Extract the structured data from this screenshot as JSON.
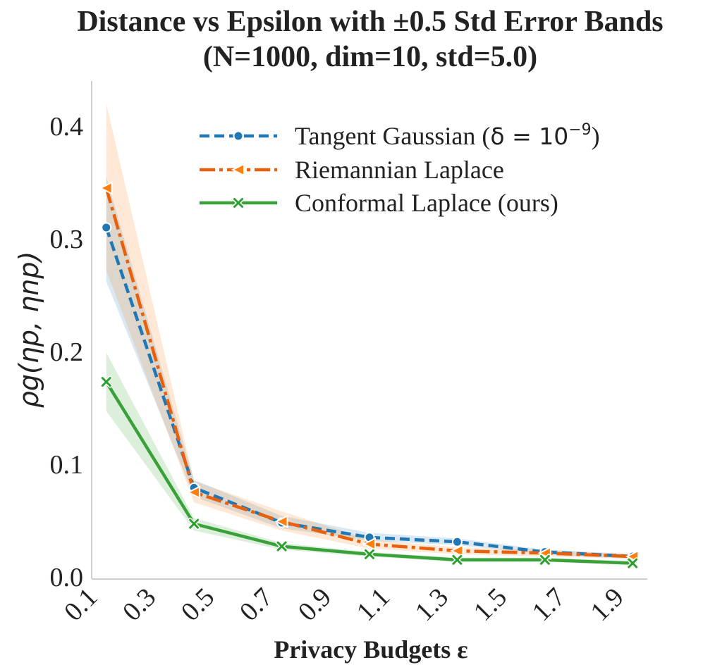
{
  "chart_data": {
    "type": "line",
    "title_line1": "Distance vs Epsilon with ±0.5 Std Error Bands",
    "title_line2": "(N=1000, dim=10, std=5.0)",
    "xlabel": "Privacy Budgets ε",
    "ylabel": "ρg(ηp, ηnp)",
    "x_tick_labels": [
      "0.1",
      "0.3",
      "0.5",
      "0.7",
      "0.9",
      "1.1",
      "1.3",
      "1.5",
      "1.7",
      "1.9"
    ],
    "y_tick_labels": [
      "0.0",
      "0.1",
      "0.2",
      "0.3",
      "0.4"
    ],
    "y_ticks": [
      0.0,
      0.1,
      0.2,
      0.3,
      0.4
    ],
    "xlim": [
      0.1,
      2.0
    ],
    "ylim": [
      -0.002,
      0.44
    ],
    "grid": false,
    "legend_position": "top-right",
    "x": [
      0.15,
      0.45,
      0.75,
      1.05,
      1.35,
      1.65,
      1.95
    ],
    "series": [
      {
        "name": "Tangent Gaussian",
        "legend_label": "Tangent Gaussian (",
        "legend_math": "δ = 10",
        "legend_sup": "−9",
        "legend_close": ")",
        "color": "#1f77b4",
        "dash": "14,7",
        "marker": "circle",
        "values": [
          0.31,
          0.079,
          0.048,
          0.035,
          0.031,
          0.022,
          0.018
        ],
        "lower": [
          0.262,
          0.071,
          0.043,
          0.032,
          0.028,
          0.02,
          0.016
        ],
        "upper": [
          0.355,
          0.086,
          0.054,
          0.039,
          0.034,
          0.024,
          0.02
        ]
      },
      {
        "name": "Riemannian Laplace",
        "legend_label": "Riemannian Laplace",
        "color": "#ff7f0e",
        "line_color": "#e8600c",
        "dash": "22,6,5,6",
        "marker": "triangle-left",
        "values": [
          0.345,
          0.075,
          0.049,
          0.029,
          0.023,
          0.021,
          0.018
        ],
        "lower": [
          0.272,
          0.066,
          0.041,
          0.025,
          0.02,
          0.018,
          0.016
        ],
        "upper": [
          0.42,
          0.085,
          0.058,
          0.033,
          0.026,
          0.024,
          0.02
        ]
      },
      {
        "name": "Conformal Laplace (ours)",
        "legend_label": "Conformal Laplace (ours)",
        "color": "#2ca02c",
        "line_color": "#3aa13a",
        "dash": "",
        "marker": "x",
        "values": [
          0.173,
          0.047,
          0.027,
          0.02,
          0.015,
          0.015,
          0.012
        ],
        "lower": [
          0.147,
          0.041,
          0.024,
          0.018,
          0.013,
          0.013,
          0.011
        ],
        "upper": [
          0.199,
          0.052,
          0.03,
          0.022,
          0.017,
          0.017,
          0.014
        ]
      }
    ]
  }
}
